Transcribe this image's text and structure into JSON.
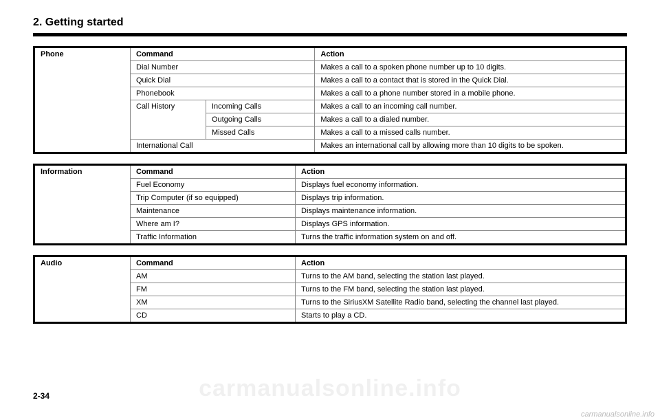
{
  "section_title": "2. Getting started",
  "page_number": "2-34",
  "watermark_small": "carmanualsonline.info",
  "watermark_large": "carmanualsonline.info",
  "tables": {
    "phone": {
      "category": "Phone",
      "header_cmd": "Command",
      "header_action": "Action",
      "rows": [
        {
          "cmd": "Dial Number",
          "action": "Makes a call to a spoken phone number up to 10 digits."
        },
        {
          "cmd": "Quick Dial",
          "action": "Makes a call to a contact that is stored in the Quick Dial."
        },
        {
          "cmd": "Phonebook",
          "action": "Makes a call to a phone number stored in a mobile phone."
        }
      ],
      "call_history": {
        "label": "Call History",
        "subrows": [
          {
            "sub": "Incoming Calls",
            "action": "Makes a call to an incoming call number."
          },
          {
            "sub": "Outgoing Calls",
            "action": "Makes a call to a dialed number."
          },
          {
            "sub": "Missed Calls",
            "action": "Makes a call to a missed calls number."
          }
        ]
      },
      "last_row": {
        "cmd": "International Call",
        "action": "Makes an international call by allowing more than 10 digits to be spoken."
      }
    },
    "information": {
      "category": "Information",
      "header_cmd": "Command",
      "header_action": "Action",
      "rows": [
        {
          "cmd": "Fuel Economy",
          "action": "Displays fuel economy information."
        },
        {
          "cmd": "Trip Computer (if so equipped)",
          "action": "Displays trip information."
        },
        {
          "cmd": "Maintenance",
          "action": "Displays maintenance information."
        },
        {
          "cmd": "Where am I?",
          "action": "Displays GPS information."
        },
        {
          "cmd": "Traffic Information",
          "action": "Turns the traffic information system on and off."
        }
      ]
    },
    "audio": {
      "category": "Audio",
      "header_cmd": "Command",
      "header_action": "Action",
      "rows": [
        {
          "cmd": "AM",
          "action": "Turns to the AM band, selecting the station last played."
        },
        {
          "cmd": "FM",
          "action": "Turns to the FM band, selecting the station last played."
        },
        {
          "cmd": "XM",
          "action": "Turns to the SiriusXM Satellite Radio band, selecting the channel last played."
        },
        {
          "cmd": "CD",
          "action": "Starts to play a CD."
        }
      ]
    }
  }
}
